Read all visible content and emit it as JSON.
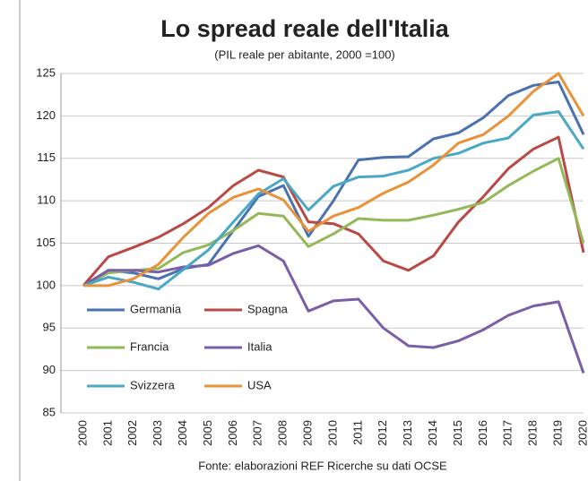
{
  "chart_data": {
    "type": "line",
    "title": "Lo spread reale dell'Italia",
    "subtitle": "(PIL reale per abitante, 2000 =100)",
    "source": "Fonte: elaborazioni REF Ricerche su dati OCSE",
    "categories": [
      "2000",
      "2001",
      "2002",
      "2003",
      "2004",
      "2005",
      "2006",
      "2007",
      "2008",
      "2009",
      "2010",
      "2011",
      "2012",
      "2013",
      "2014",
      "2015",
      "2016",
      "2017",
      "2018",
      "2019",
      "2020"
    ],
    "ylim": [
      85,
      125
    ],
    "yticks": [
      85,
      90,
      95,
      100,
      105,
      110,
      115,
      120,
      125
    ],
    "grid": true,
    "series": [
      {
        "name": "Germania",
        "color": "#4a72b0",
        "values": [
          100,
          101.8,
          101.5,
          100.8,
          102,
          102.5,
          106.5,
          110.5,
          111.8,
          105.8,
          110,
          114.8,
          115.1,
          115.2,
          117.3,
          118,
          119.8,
          122.4,
          123.6,
          124,
          117.8
        ]
      },
      {
        "name": "Spagna",
        "color": "#b84a45",
        "values": [
          100,
          103.4,
          104.5,
          105.7,
          107.3,
          109.2,
          111.8,
          113.6,
          112.8,
          107.5,
          107.3,
          106.1,
          102.9,
          101.8,
          103.5,
          107.5,
          110.5,
          113.8,
          116.1,
          117.5,
          103.9
        ]
      },
      {
        "name": "Francia",
        "color": "#93b857",
        "values": [
          100,
          101.5,
          101.8,
          102,
          103.9,
          104.8,
          106.5,
          108.5,
          108.2,
          104.6,
          106.1,
          107.9,
          107.7,
          107.7,
          108.3,
          109,
          109.8,
          111.8,
          113.5,
          115,
          105
        ]
      },
      {
        "name": "Italia",
        "color": "#7b5ea8",
        "values": [
          100,
          101.8,
          101.8,
          101.6,
          102.2,
          102.4,
          103.8,
          104.7,
          102.9,
          97,
          98.2,
          98.4,
          95,
          92.9,
          92.7,
          93.5,
          94.8,
          96.5,
          97.6,
          98.1,
          89.7
        ]
      },
      {
        "name": "Svizzera",
        "color": "#4aa8c4",
        "values": [
          100,
          101,
          100.4,
          99.6,
          101.9,
          104.2,
          107.5,
          110.8,
          112.6,
          108.9,
          111.7,
          112.8,
          112.9,
          113.6,
          115,
          115.6,
          116.8,
          117.4,
          120.1,
          120.5,
          116.1
        ]
      },
      {
        "name": "USA",
        "color": "#e8923a",
        "values": [
          100,
          100,
          100.8,
          102.5,
          105.7,
          108.5,
          110.4,
          111.4,
          110.1,
          106.4,
          108.2,
          109.2,
          110.9,
          112.2,
          114.2,
          116.8,
          117.8,
          120,
          122.9,
          125,
          120
        ]
      }
    ]
  }
}
